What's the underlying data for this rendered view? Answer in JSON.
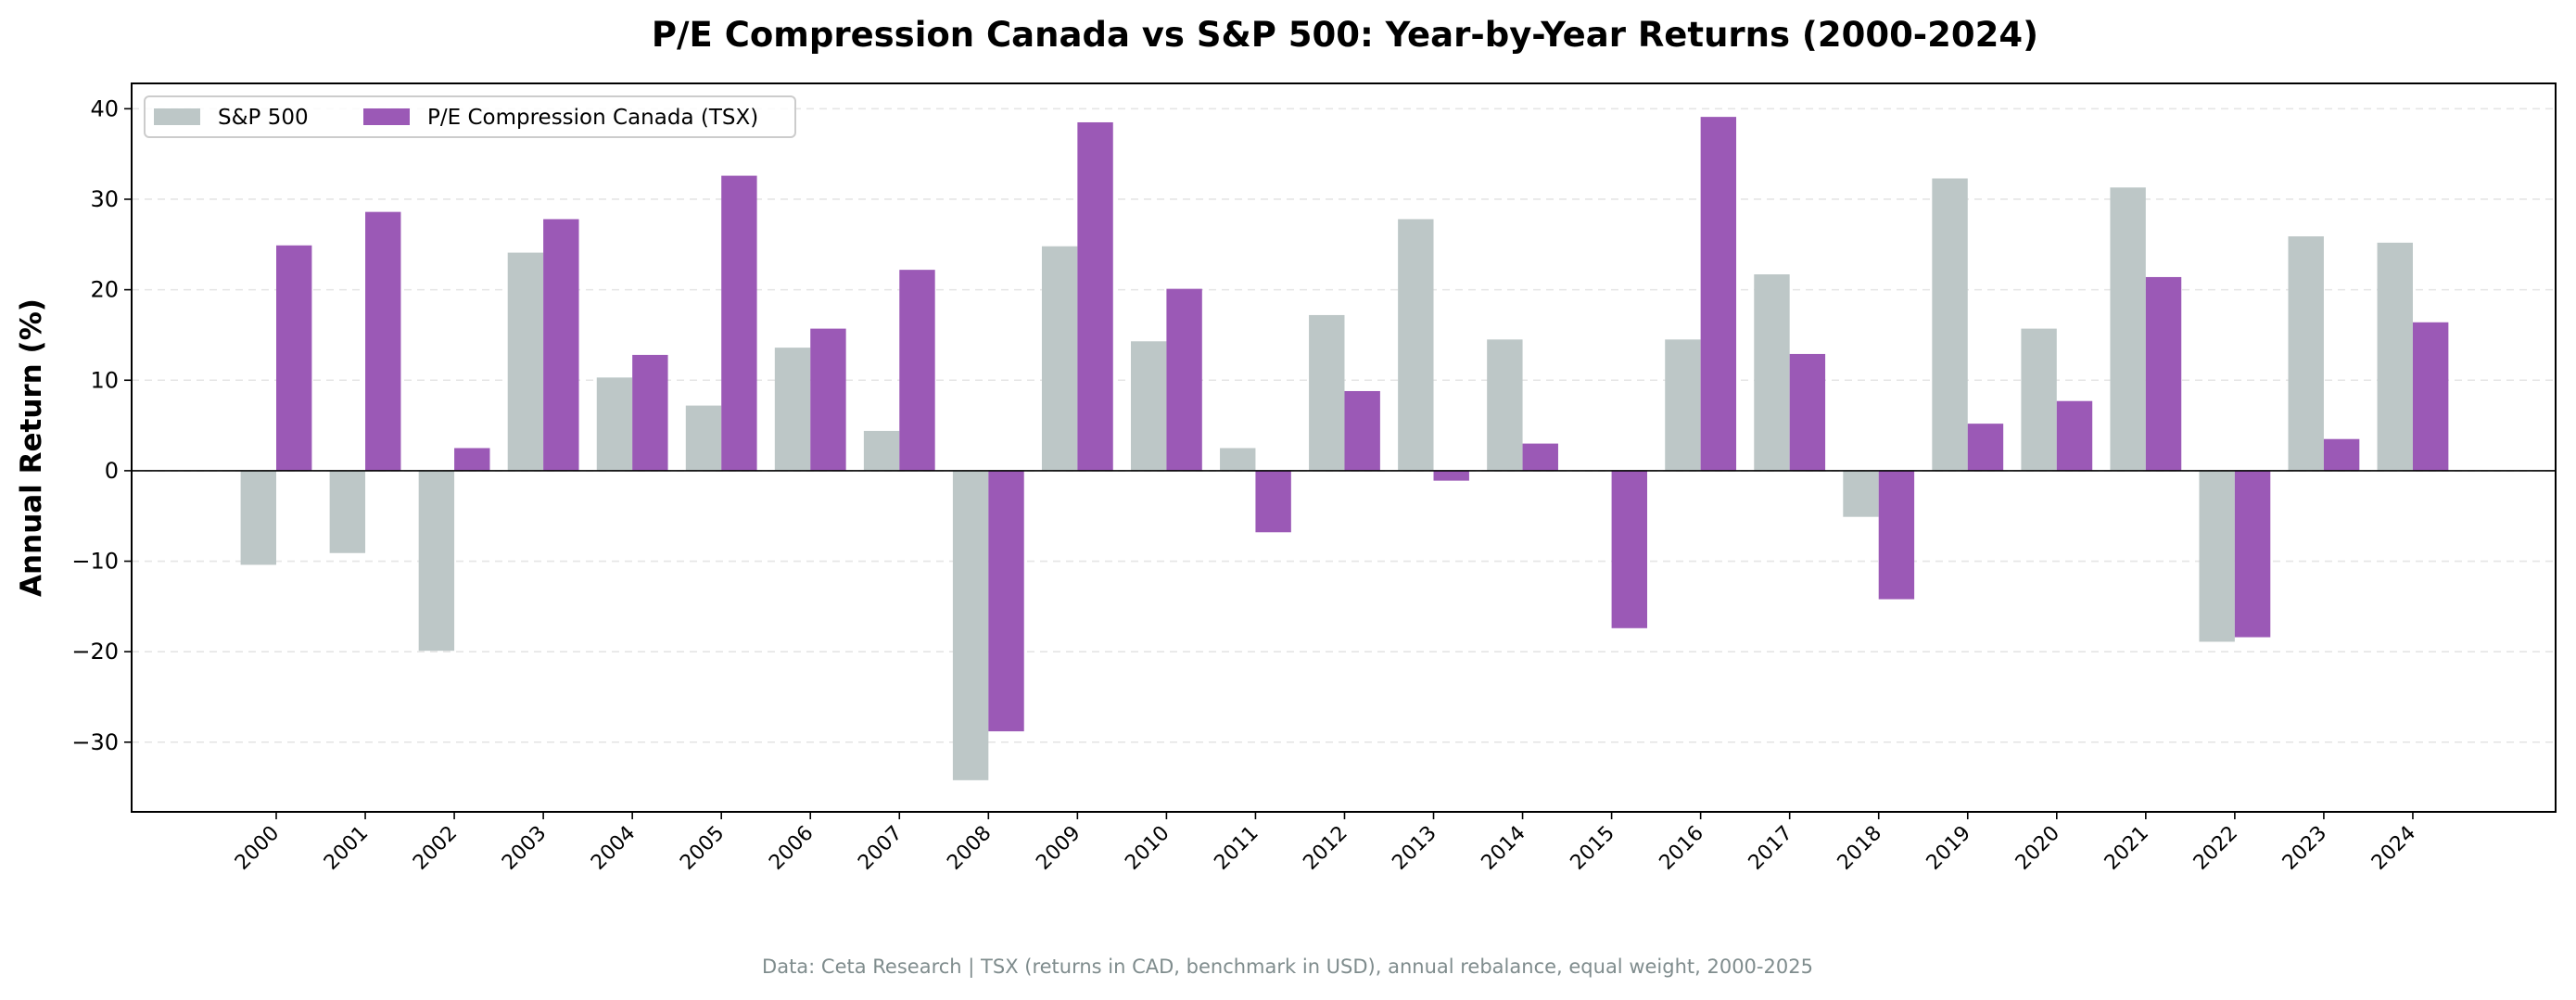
{
  "chart_data": {
    "type": "bar",
    "title": "P/E Compression Canada vs S&P 500: Year-by-Year Returns (2000-2024)",
    "xlabel": "",
    "ylabel": "Annual Return (%)",
    "ylim": [
      -37.7,
      42.8
    ],
    "yticks": [
      -30,
      -20,
      -10,
      0,
      10,
      20,
      30,
      40
    ],
    "grid": true,
    "legend_position": "top-left",
    "categories": [
      "2000",
      "2001",
      "2002",
      "2003",
      "2004",
      "2005",
      "2006",
      "2007",
      "2008",
      "2009",
      "2010",
      "2011",
      "2012",
      "2013",
      "2014",
      "2015",
      "2016",
      "2017",
      "2018",
      "2019",
      "2020",
      "2021",
      "2022",
      "2023",
      "2024"
    ],
    "series": [
      {
        "name": "S&P 500",
        "color": "#bdc7c7",
        "values": [
          -10.4,
          -9.1,
          -19.9,
          24.1,
          10.3,
          7.2,
          13.6,
          4.4,
          -34.2,
          24.8,
          14.3,
          2.5,
          17.2,
          27.8,
          14.5,
          0,
          14.5,
          21.7,
          -5.1,
          32.3,
          15.7,
          31.3,
          -18.9,
          25.9,
          25.2
        ]
      },
      {
        "name": "P/E Compression Canada (TSX)",
        "color": "#9b59b6",
        "values": [
          24.9,
          28.6,
          2.5,
          27.8,
          12.8,
          32.6,
          15.7,
          22.2,
          -28.8,
          38.5,
          20.1,
          -6.8,
          8.8,
          -1.1,
          3.0,
          -17.4,
          39.1,
          12.9,
          -14.2,
          5.2,
          7.7,
          21.4,
          -18.4,
          3.5,
          16.4
        ]
      }
    ],
    "footnote": "Data: Ceta Research | TSX (returns in CAD, benchmark in USD), annual rebalance, equal weight, 2000-2025"
  }
}
